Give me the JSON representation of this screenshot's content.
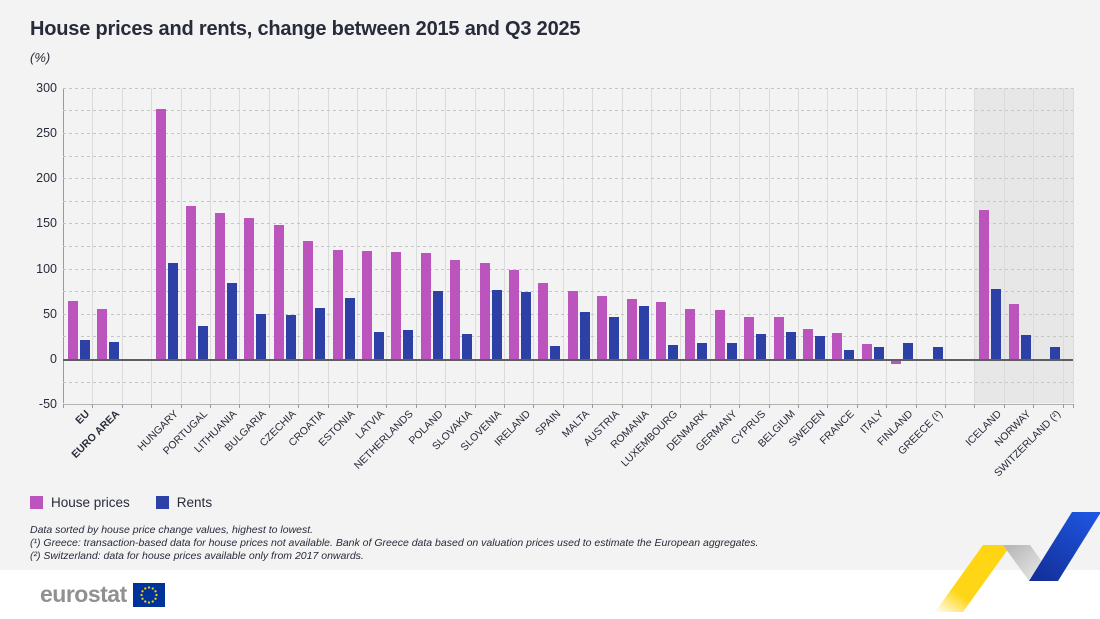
{
  "header": {
    "title": "House prices and rents, change between 2015 and Q3 2025",
    "unit_label": "(%)"
  },
  "legend": {
    "house_prices": "House prices",
    "rents": "Rents"
  },
  "footnotes": {
    "line1": "Data sorted by house price change values, highest to lowest.",
    "line2": "(¹) Greece: transaction-based data for house prices not available. Bank of Greece data based on valuation prices used to estimate the European aggregates.",
    "line3": "(²) Switzerland: data for house prices available only from 2017 onwards."
  },
  "footer": {
    "logo_text": "eurostat"
  },
  "colors": {
    "house_prices": "#bb54bc",
    "rents": "#2c40a5",
    "shaded_panel": "#e8e7e7",
    "title_text": "#272b3a",
    "eu_flag_blue": "#003399",
    "eu_star_yellow": "#ffcc00",
    "ribbon_yellow": "#ffd513",
    "ribbon_blue": "#1e55e0"
  },
  "chart_data": {
    "type": "bar",
    "title": "House prices and rents, change between 2015 and Q3 2025",
    "ylabel": "(%)",
    "ylim": [
      -50,
      300
    ],
    "ytick_step": 50,
    "gridline_step": 25,
    "grid": "horizontal-dashed",
    "legend_position": "bottom-left",
    "categories": [
      "EU",
      "EURO AREA",
      "HUNGARY",
      "PORTUGAL",
      "LITHUANIA",
      "BULGARIA",
      "CZECHIA",
      "CROATIA",
      "ESTONIA",
      "LATVIA",
      "NETHERLANDS",
      "POLAND",
      "SLOVAKIA",
      "SLOVENIA",
      "IRELAND",
      "SPAIN",
      "MALTA",
      "AUSTRIA",
      "ROMANIA",
      "LUXEMBOURG",
      "DENMARK",
      "GERMANY",
      "CYPRUS",
      "BELGIUM",
      "SWEDEN",
      "FRANCE",
      "ITALY",
      "FINLAND",
      "GREECE (¹)",
      "ICELAND",
      "NORWAY",
      "SWITZERLAND (²)"
    ],
    "bold_categories": [
      "EU",
      "EURO AREA"
    ],
    "gap_after": [
      "EURO AREA",
      "GREECE (¹)"
    ],
    "shaded_categories": [
      "ICELAND",
      "NORWAY",
      "SWITZERLAND (²)"
    ],
    "series": [
      {
        "name": "House prices",
        "color": "#bb54bc",
        "values": [
          64,
          55,
          277,
          169,
          161,
          156,
          148,
          130,
          121,
          120,
          118,
          117,
          109,
          106,
          99,
          84,
          75,
          70,
          66,
          63,
          55,
          54,
          47,
          46,
          33,
          29,
          17,
          -4,
          null,
          165,
          61,
          null
        ]
      },
      {
        "name": "Rents",
        "color": "#2c40a5",
        "values": [
          21,
          19,
          106,
          36,
          84,
          50,
          49,
          56,
          68,
          30,
          32,
          75,
          28,
          76,
          74,
          14,
          52,
          47,
          59,
          15,
          18,
          18,
          28,
          30,
          26,
          10,
          13,
          18,
          13,
          78,
          27,
          13
        ]
      }
    ]
  }
}
